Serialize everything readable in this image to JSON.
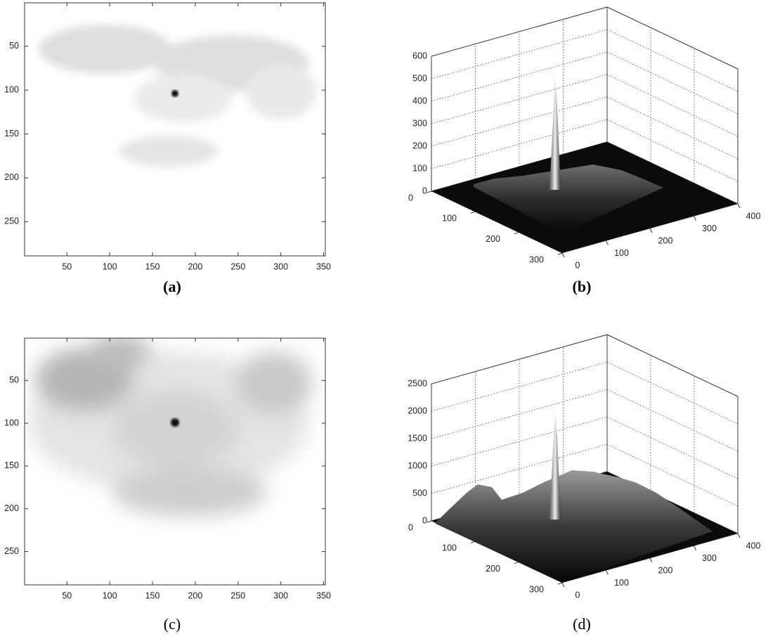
{
  "chart_data": [
    {
      "type": "image",
      "caption": "(a)",
      "xlim": [
        0.5,
        352
      ],
      "ylim": [
        289,
        0.5
      ],
      "xticks": [
        50,
        100,
        150,
        200,
        250,
        300,
        350
      ],
      "yticks": [
        50,
        100,
        150,
        200,
        250
      ]
    },
    {
      "type": "surface",
      "caption": "(b)",
      "xlim": [
        0,
        300
      ],
      "ylim": [
        0,
        400
      ],
      "zlim": [
        0,
        600
      ],
      "xticks": [
        0,
        100,
        200,
        300
      ],
      "yticks": [
        0,
        100,
        200,
        300,
        400
      ],
      "zticks": [
        0,
        100,
        200,
        300,
        400,
        500,
        600
      ]
    },
    {
      "type": "image",
      "caption": "(c)",
      "xlim": [
        0.5,
        352
      ],
      "ylim": [
        289,
        0.5
      ],
      "xticks": [
        50,
        100,
        150,
        200,
        250,
        300,
        350
      ],
      "yticks": [
        50,
        100,
        150,
        200,
        250
      ]
    },
    {
      "type": "surface",
      "caption": "(d)",
      "xlim": [
        0,
        300
      ],
      "ylim": [
        0,
        400
      ],
      "zlim": [
        0,
        2500
      ],
      "xticks": [
        0,
        100,
        200,
        300
      ],
      "yticks": [
        0,
        100,
        200,
        300,
        400
      ],
      "zticks": [
        0,
        500,
        1000,
        1500,
        2000,
        2500
      ]
    }
  ]
}
